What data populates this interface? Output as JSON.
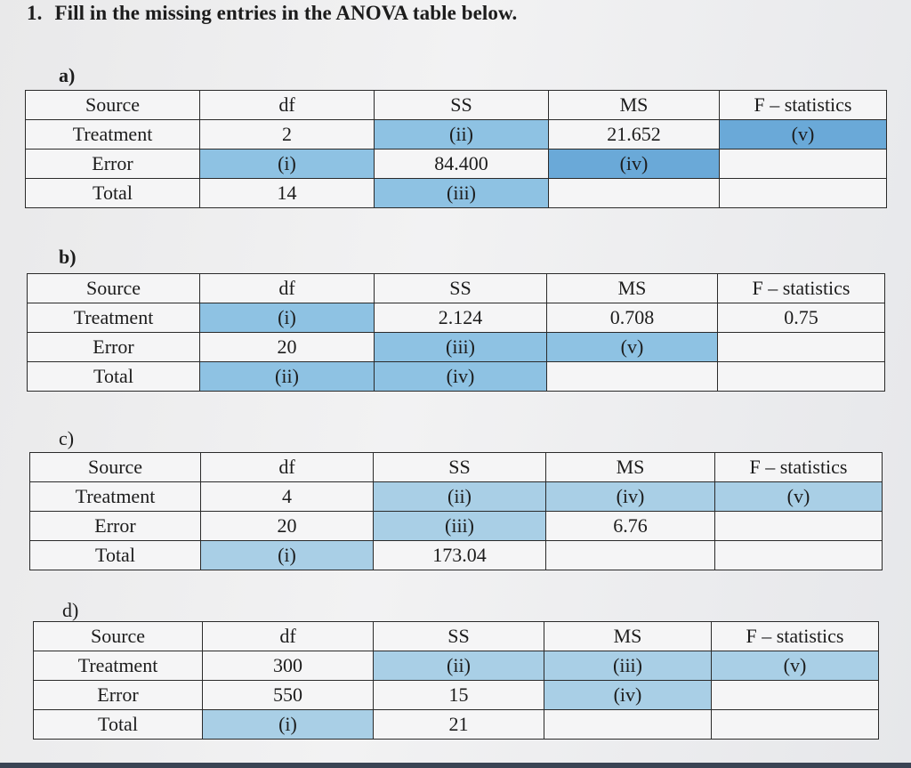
{
  "question": {
    "number": "1.",
    "text": "Fill in the missing entries in the ANOVA table below."
  },
  "parts": [
    {
      "label": "a)",
      "headers": [
        "Source",
        "df",
        "SS",
        "MS",
        "F – statistics"
      ],
      "rows": [
        [
          "Treatment",
          "2",
          "(ii)",
          "21.652",
          "(v)"
        ],
        [
          "Error",
          "(i)",
          "84.400",
          "(iv)",
          ""
        ],
        [
          "Total",
          "14",
          "(iii)",
          "",
          ""
        ]
      ]
    },
    {
      "label": "b)",
      "headers": [
        "Source",
        "df",
        "SS",
        "MS",
        "F – statistics"
      ],
      "rows": [
        [
          "Treatment",
          "(i)",
          "2.124",
          "0.708",
          "0.75"
        ],
        [
          "Error",
          "20",
          "(iii)",
          "(v)",
          ""
        ],
        [
          "Total",
          "(ii)",
          "(iv)",
          "",
          ""
        ]
      ]
    },
    {
      "label": "c)",
      "headers": [
        "Source",
        "df",
        "SS",
        "MS",
        "F – statistics"
      ],
      "rows": [
        [
          "Treatment",
          "4",
          "(ii)",
          "(iv)",
          "(v)"
        ],
        [
          "Error",
          "20",
          "(iii)",
          "6.76",
          ""
        ],
        [
          "Total",
          "(i)",
          "173.04",
          "",
          ""
        ]
      ]
    },
    {
      "label": "d)",
      "headers": [
        "Source",
        "df",
        "SS",
        "MS",
        "F – statistics"
      ],
      "rows": [
        [
          "Treatment",
          "300",
          "(ii)",
          "(iii)",
          "(v)"
        ],
        [
          "Error",
          "550",
          "15",
          "(iv)",
          ""
        ],
        [
          "Total",
          "(i)",
          "21",
          "",
          ""
        ]
      ]
    }
  ]
}
